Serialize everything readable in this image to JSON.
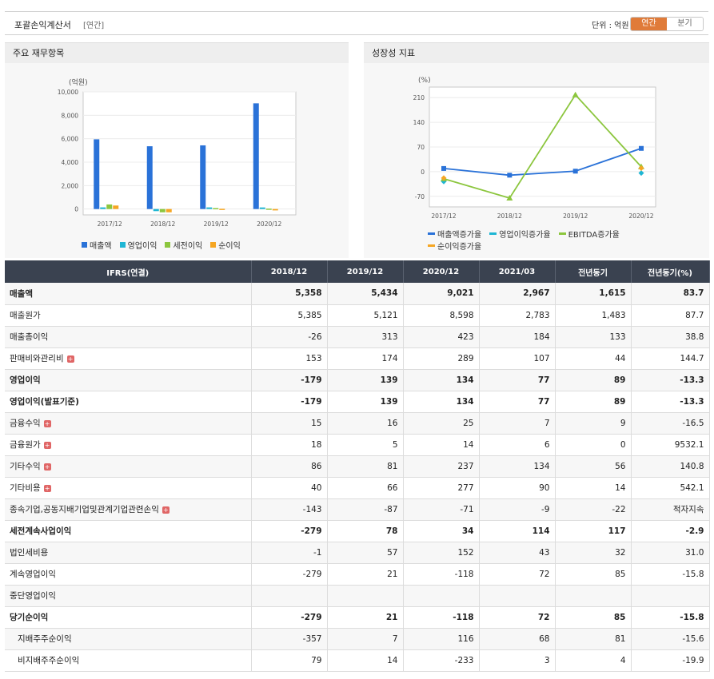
{
  "header": {
    "title": "포괄손익계산서",
    "period_tag": "[연간]",
    "unit": "단위 : 억원",
    "annual_button": "연간",
    "quarter_button": "분기"
  },
  "panels": {
    "financial_title": "주요 재무항목",
    "growth_title": "성장성 지표"
  },
  "chart_data": [
    {
      "type": "bar",
      "ylabel": "(억원)",
      "categories": [
        "2017/12",
        "2018/12",
        "2019/12",
        "2020/12"
      ],
      "ylim": [
        -500,
        10000
      ],
      "yticks": [
        0,
        2000,
        4000,
        6000,
        8000,
        10000
      ],
      "ytick_labels": [
        "0",
        "2,000",
        "4,000",
        "6,000",
        "8,000",
        "10,000"
      ],
      "legend_position": "bottom",
      "series": [
        {
          "name": "매출액",
          "color": "#2a72d8",
          "values": [
            5950,
            5358,
            5434,
            9021
          ]
        },
        {
          "name": "영업이익",
          "color": "#1fb6d4",
          "values": [
            140,
            -179,
            139,
            134
          ]
        },
        {
          "name": "세전이익",
          "color": "#8cc63e",
          "values": [
            390,
            -279,
            78,
            34
          ]
        },
        {
          "name": "순이익",
          "color": "#f5a623",
          "values": [
            300,
            -279,
            21,
            -118
          ]
        }
      ]
    },
    {
      "type": "line",
      "ylabel": "(%)",
      "categories": [
        "2017/12",
        "2018/12",
        "2019/12",
        "2020/12"
      ],
      "ylim": [
        -100,
        240
      ],
      "yticks": [
        -70,
        0,
        70,
        140,
        210
      ],
      "legend_position": "bottom",
      "series": [
        {
          "name": "매출액증가율",
          "color": "#2a72d8",
          "values": [
            9,
            -10,
            1.4,
            66
          ]
        },
        {
          "name": "영업이익증가율",
          "color": "#1fb6d4",
          "values": [
            -28,
            null,
            null,
            -4
          ]
        },
        {
          "name": "EBITDA증가율",
          "color": "#8cc63e",
          "values": [
            -20,
            -75,
            218,
            14
          ]
        },
        {
          "name": "순이익증가율",
          "color": "#f5a623",
          "values": [
            -18,
            null,
            null,
            10
          ]
        }
      ]
    }
  ],
  "table": {
    "columns": [
      "IFRS(연결)",
      "2018/12",
      "2019/12",
      "2020/12",
      "2021/03",
      "전년동기",
      "전년동기(%)"
    ],
    "rows": [
      {
        "label": "매출액",
        "values": [
          "5,358",
          "5,434",
          "9,021",
          "2,967",
          "1,615",
          "83.7"
        ],
        "bold": true,
        "plus": false,
        "sub": false
      },
      {
        "label": "매출원가",
        "values": [
          "5,385",
          "5,121",
          "8,598",
          "2,783",
          "1,483",
          "87.7"
        ],
        "bold": false,
        "plus": false,
        "sub": false
      },
      {
        "label": "매출총이익",
        "values": [
          "-26",
          "313",
          "423",
          "184",
          "133",
          "38.8"
        ],
        "bold": false,
        "plus": false,
        "sub": false
      },
      {
        "label": "판매비와관리비",
        "values": [
          "153",
          "174",
          "289",
          "107",
          "44",
          "144.7"
        ],
        "bold": false,
        "plus": true,
        "sub": false
      },
      {
        "label": "영업이익",
        "values": [
          "-179",
          "139",
          "134",
          "77",
          "89",
          "-13.3"
        ],
        "bold": true,
        "plus": false,
        "sub": false
      },
      {
        "label": "영업이익(발표기준)",
        "values": [
          "-179",
          "139",
          "134",
          "77",
          "89",
          "-13.3"
        ],
        "bold": true,
        "plus": false,
        "sub": false
      },
      {
        "label": "금융수익",
        "values": [
          "15",
          "16",
          "25",
          "7",
          "9",
          "-16.5"
        ],
        "bold": false,
        "plus": true,
        "sub": false
      },
      {
        "label": "금융원가",
        "values": [
          "18",
          "5",
          "14",
          "6",
          "0",
          "9532.1"
        ],
        "bold": false,
        "plus": true,
        "sub": false
      },
      {
        "label": "기타수익",
        "values": [
          "86",
          "81",
          "237",
          "134",
          "56",
          "140.8"
        ],
        "bold": false,
        "plus": true,
        "sub": false
      },
      {
        "label": "기타비용",
        "values": [
          "40",
          "66",
          "277",
          "90",
          "14",
          "542.1"
        ],
        "bold": false,
        "plus": true,
        "sub": false
      },
      {
        "label": "종속기업,공동지배기업및관계기업관련손익",
        "values": [
          "-143",
          "-87",
          "-71",
          "-9",
          "-22",
          "적자지속"
        ],
        "bold": false,
        "plus": true,
        "sub": false
      },
      {
        "label": "세전계속사업이익",
        "values": [
          "-279",
          "78",
          "34",
          "114",
          "117",
          "-2.9"
        ],
        "bold": true,
        "plus": false,
        "sub": false
      },
      {
        "label": "법인세비용",
        "values": [
          "-1",
          "57",
          "152",
          "43",
          "32",
          "31.0"
        ],
        "bold": false,
        "plus": false,
        "sub": false
      },
      {
        "label": "계속영업이익",
        "values": [
          "-279",
          "21",
          "-118",
          "72",
          "85",
          "-15.8"
        ],
        "bold": false,
        "plus": false,
        "sub": false
      },
      {
        "label": "중단영업이익",
        "values": [
          "",
          "",
          "",
          "",
          "",
          ""
        ],
        "bold": false,
        "plus": false,
        "sub": false
      },
      {
        "label": "당기순이익",
        "values": [
          "-279",
          "21",
          "-118",
          "72",
          "85",
          "-15.8"
        ],
        "bold": true,
        "plus": false,
        "sub": false
      },
      {
        "label": "지배주주순이익",
        "values": [
          "-357",
          "7",
          "116",
          "68",
          "81",
          "-15.6"
        ],
        "bold": false,
        "plus": false,
        "sub": true
      },
      {
        "label": "비지배주주순이익",
        "values": [
          "79",
          "14",
          "-233",
          "3",
          "4",
          "-19.9"
        ],
        "bold": false,
        "plus": false,
        "sub": true
      }
    ]
  }
}
